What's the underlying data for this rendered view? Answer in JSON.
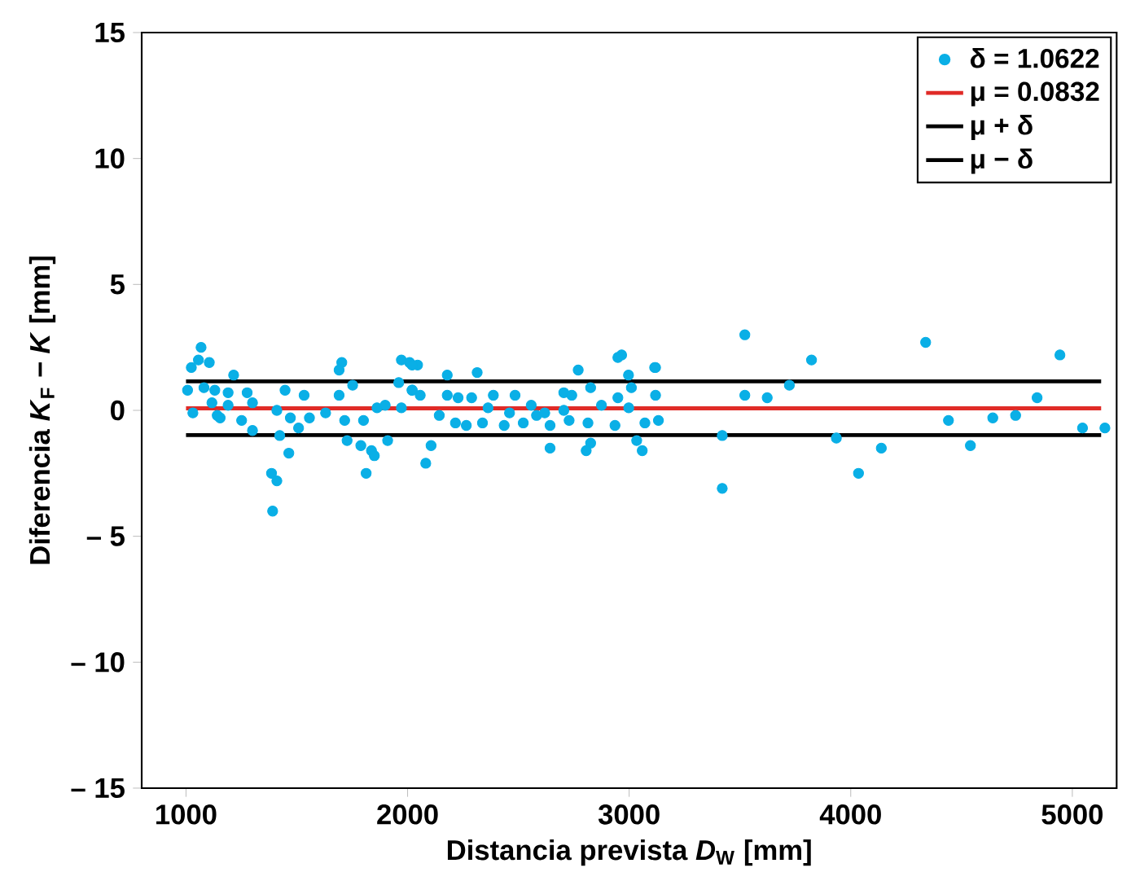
{
  "chart_data": {
    "type": "scatter",
    "xlabel": "Distancia prevista *D*$_{W}$ [mm]",
    "ylabel": "Diferencia *K*$_{F}$ *− K* [mm]",
    "xlim": [
      800,
      5200
    ],
    "ylim": [
      -15,
      15
    ],
    "xticks": [
      1000,
      2000,
      3000,
      4000,
      5000
    ],
    "yticks": [
      {
        "value": -15,
        "label": "– 15"
      },
      {
        "value": -10,
        "label": "– 10"
      },
      {
        "value": -5,
        "label": "– 5"
      },
      0,
      5,
      10,
      15
    ],
    "legend": "top right",
    "series": [
      {
        "name": "δ = 1.0622",
        "marker": "circle",
        "color": "#0aafe6",
        "x": [
          3522,
          3115,
          3823,
          4338,
          4944,
          3522,
          3623,
          3723,
          4841,
          3420,
          3420,
          3935,
          4035,
          4138,
          4441,
          4540,
          4641,
          4744,
          5046,
          5147,
          2966,
          2949,
          2770,
          3119,
          2997,
          2314,
          2179,
          2009,
          2045,
          2021,
          2057,
          2179,
          2228,
          2289,
          2387,
          2485,
          2558,
          2705,
          2741,
          2826,
          3010,
          2949,
          3119,
          2143,
          2216,
          2265,
          2338,
          2436,
          2522,
          2582,
          2643,
          2729,
          2814,
          2936,
          3071,
          3132,
          2106,
          2082,
          2643,
          2826,
          2806,
          3034,
          3059,
          2363,
          2460,
          2619,
          2705,
          2875,
          2998,
          1068,
          1024,
          1105,
          1056,
          1215,
          1007,
          1081,
          1130,
          1190,
          1276,
          1447,
          1533,
          1703,
          1691,
          1752,
          1691,
          1972,
          2020,
          1960,
          2020,
          1031,
          1141,
          1154,
          1251,
          1300,
          1423,
          1471,
          1508,
          1557,
          1630,
          1716,
          1801,
          1862,
          1899,
          1972,
          1117,
          1190,
          1300,
          1410,
          1464,
          1386,
          1410,
          1391,
          1727,
          1789,
          1837,
          1850,
          1813,
          1910
        ],
        "values": [
          3.0,
          1.7,
          2.0,
          2.7,
          2.2,
          0.6,
          0.5,
          1.0,
          0.5,
          -1.0,
          -3.1,
          -1.1,
          -2.5,
          -1.5,
          -0.4,
          -1.4,
          -0.3,
          -0.2,
          -0.7,
          -0.7,
          2.2,
          2.1,
          1.6,
          1.7,
          1.4,
          1.5,
          1.4,
          1.9,
          1.8,
          0.8,
          0.6,
          0.6,
          0.5,
          0.5,
          0.6,
          0.6,
          0.2,
          0.7,
          0.6,
          0.9,
          0.9,
          0.5,
          0.6,
          -0.2,
          -0.5,
          -0.6,
          -0.5,
          -0.6,
          -0.5,
          -0.2,
          -0.6,
          -0.4,
          -0.5,
          -0.6,
          -0.5,
          -0.4,
          -1.4,
          -2.1,
          -1.5,
          -1.3,
          -1.6,
          -1.2,
          -1.6,
          0.1,
          -0.1,
          -0.1,
          0.0,
          0.2,
          0.1,
          2.5,
          1.7,
          1.9,
          2.0,
          1.4,
          0.8,
          0.9,
          0.8,
          0.7,
          0.7,
          0.8,
          0.6,
          1.9,
          1.6,
          1.0,
          0.6,
          2.0,
          1.8,
          1.1,
          0.8,
          -0.1,
          -0.2,
          -0.3,
          -0.4,
          -0.8,
          -1.0,
          -0.3,
          -0.7,
          -0.3,
          -0.1,
          -0.4,
          -0.4,
          0.1,
          0.2,
          0.1,
          0.3,
          0.2,
          0.3,
          0.0,
          -1.7,
          -2.5,
          -2.8,
          -4.0,
          -1.2,
          -1.4,
          -1.6,
          -1.8,
          -2.5,
          -1.2
        ]
      },
      {
        "name": "μ = 0.0832",
        "type": "line",
        "color": "#e02b27",
        "x": [
          1000,
          5130
        ],
        "values": [
          0.08,
          0.08
        ]
      },
      {
        "name": "μ + δ",
        "type": "line",
        "color": "#000000",
        "x": [
          1000,
          5130
        ],
        "values": [
          1.15,
          1.15
        ]
      },
      {
        "name": "μ − δ",
        "type": "line",
        "color": "#000000",
        "x": [
          1000,
          5130
        ],
        "values": [
          -0.98,
          -0.98
        ]
      }
    ]
  }
}
